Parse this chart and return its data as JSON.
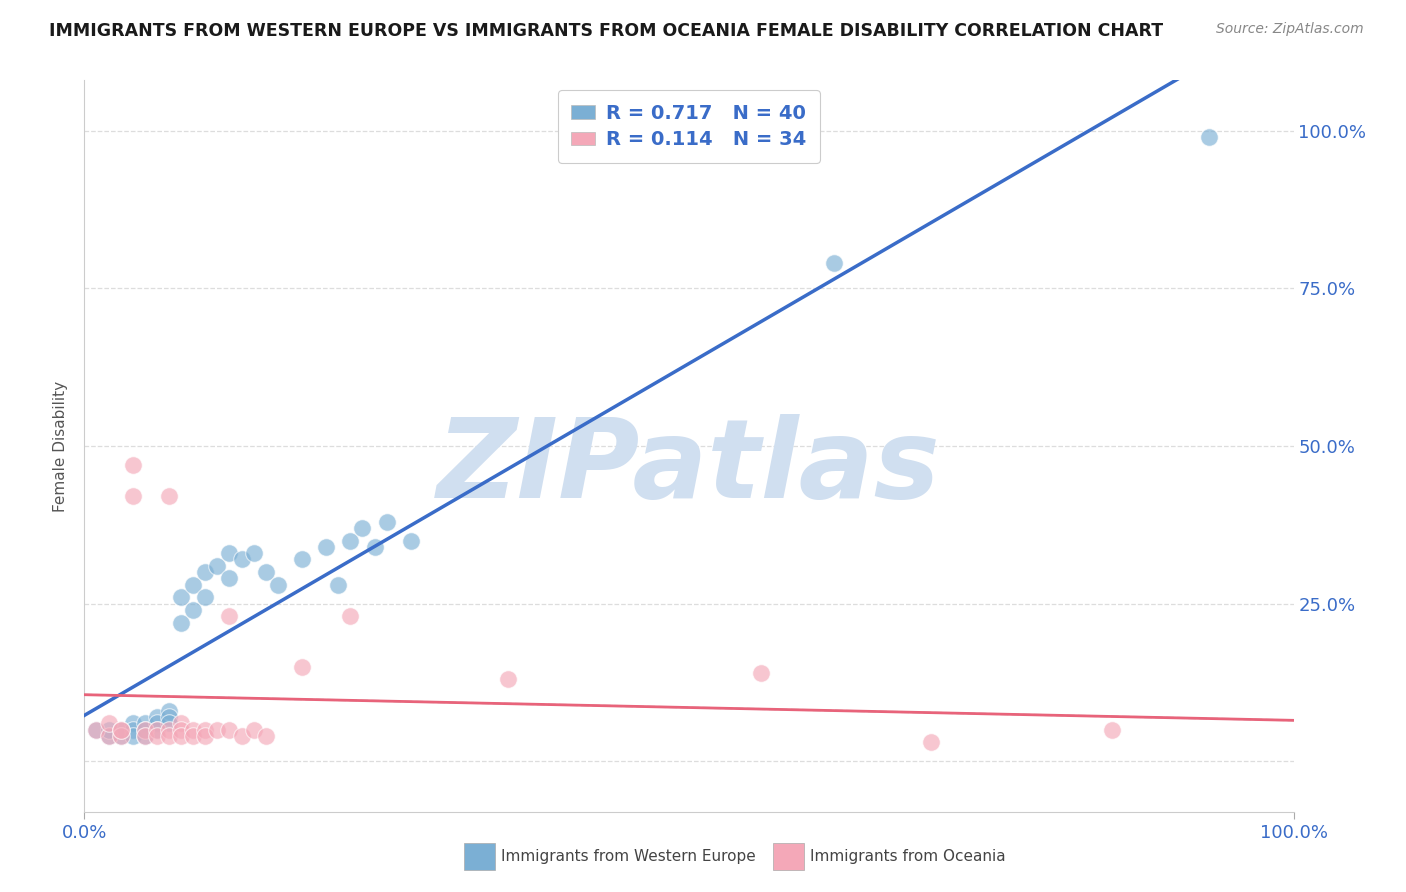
{
  "title": "IMMIGRANTS FROM WESTERN EUROPE VS IMMIGRANTS FROM OCEANIA FEMALE DISABILITY CORRELATION CHART",
  "source": "Source: ZipAtlas.com",
  "ylabel": "Female Disability",
  "blue_R": 0.717,
  "blue_N": 40,
  "pink_R": 0.114,
  "pink_N": 34,
  "blue_label": "Immigrants from Western Europe",
  "pink_label": "Immigrants from Oceania",
  "blue_color": "#7BAFD4",
  "pink_color": "#F4A8B8",
  "blue_line_color": "#3A6CC8",
  "pink_line_color": "#E8637A",
  "dashed_line_color": "#C8C8C8",
  "background_color": "#FFFFFF",
  "watermark_text": "ZIPatlas",
  "watermark_color": "#D0DFF0",
  "xlim": [
    0,
    1
  ],
  "ylim": [
    -0.08,
    1.08
  ],
  "yticks": [
    0.0,
    0.25,
    0.5,
    0.75,
    1.0
  ],
  "ytick_labels": [
    "",
    "25.0%",
    "50.0%",
    "75.0%",
    "100.0%"
  ],
  "xticks": [
    0,
    1
  ],
  "xtick_labels": [
    "0.0%",
    "100.0%"
  ],
  "legend_text_color": "#3A6CC8",
  "blue_x": [
    0.01,
    0.02,
    0.02,
    0.03,
    0.03,
    0.04,
    0.04,
    0.04,
    0.05,
    0.05,
    0.05,
    0.06,
    0.06,
    0.06,
    0.07,
    0.07,
    0.07,
    0.08,
    0.08,
    0.09,
    0.09,
    0.1,
    0.1,
    0.11,
    0.12,
    0.12,
    0.13,
    0.14,
    0.15,
    0.16,
    0.18,
    0.2,
    0.21,
    0.22,
    0.23,
    0.24,
    0.25,
    0.27,
    0.62,
    0.93
  ],
  "blue_y": [
    0.05,
    0.04,
    0.05,
    0.05,
    0.04,
    0.06,
    0.05,
    0.04,
    0.06,
    0.05,
    0.04,
    0.07,
    0.06,
    0.05,
    0.08,
    0.07,
    0.06,
    0.26,
    0.22,
    0.28,
    0.24,
    0.3,
    0.26,
    0.31,
    0.33,
    0.29,
    0.32,
    0.33,
    0.3,
    0.28,
    0.32,
    0.34,
    0.28,
    0.35,
    0.37,
    0.34,
    0.38,
    0.35,
    0.79,
    0.99
  ],
  "pink_x": [
    0.01,
    0.02,
    0.02,
    0.03,
    0.03,
    0.03,
    0.04,
    0.04,
    0.05,
    0.05,
    0.06,
    0.06,
    0.07,
    0.07,
    0.07,
    0.08,
    0.08,
    0.08,
    0.09,
    0.09,
    0.1,
    0.1,
    0.11,
    0.12,
    0.12,
    0.13,
    0.14,
    0.15,
    0.18,
    0.22,
    0.35,
    0.56,
    0.7,
    0.85
  ],
  "pink_y": [
    0.05,
    0.04,
    0.06,
    0.05,
    0.04,
    0.05,
    0.47,
    0.42,
    0.05,
    0.04,
    0.05,
    0.04,
    0.42,
    0.05,
    0.04,
    0.06,
    0.05,
    0.04,
    0.05,
    0.04,
    0.05,
    0.04,
    0.05,
    0.23,
    0.05,
    0.04,
    0.05,
    0.04,
    0.15,
    0.23,
    0.13,
    0.14,
    0.03,
    0.05
  ],
  "blue_trend": [
    0.0,
    1.0
  ],
  "pink_trend": [
    0.0,
    1.0
  ]
}
